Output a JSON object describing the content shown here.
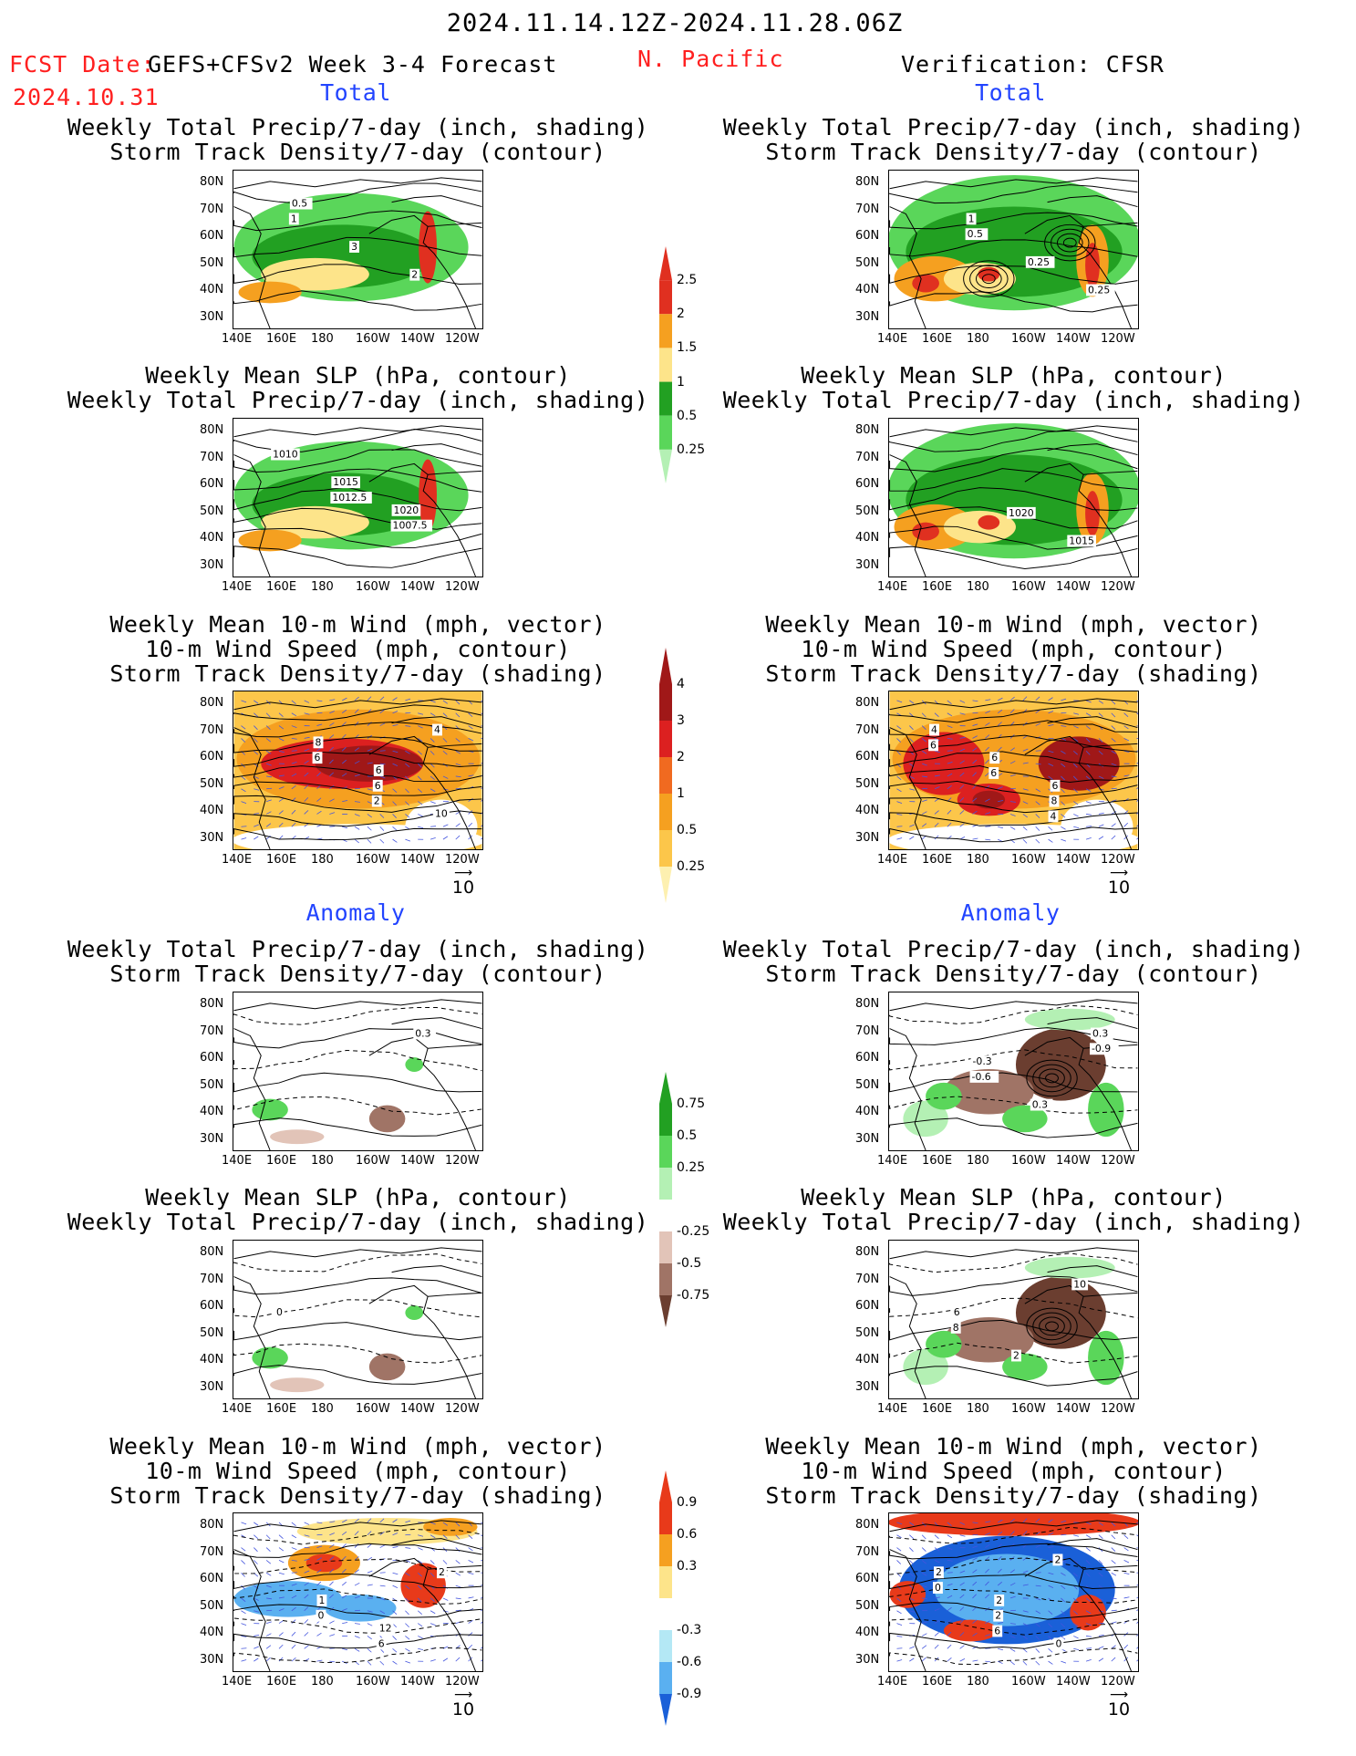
{
  "header": {
    "date_range": "2024.11.14.12Z-2024.11.28.06Z",
    "fcst_label": "FCST Date:",
    "model": "GEFS+CFSv2 Week 3-4 Forecast",
    "fcst_date": "2024.10.31",
    "region": "N. Pacific",
    "verification": "Verification: CFSR"
  },
  "sections": {
    "total": "Total",
    "anomaly": "Anomaly"
  },
  "titles": {
    "precip_storm": [
      "Weekly Total Precip/7-day (inch, shading)",
      "Storm Track Density/7-day (contour)"
    ],
    "slp_precip": [
      "Weekly Mean SLP (hPa, contour)",
      "Weekly Total Precip/7-day (inch, shading)"
    ],
    "wind_storm": [
      "Weekly Mean 10-m Wind (mph, vector)",
      "10-m Wind Speed (mph, contour)",
      "Storm Track Density/7-day (shading)"
    ]
  },
  "axes": {
    "lat": [
      "80N",
      "70N",
      "60N",
      "50N",
      "40N",
      "30N"
    ],
    "lon": [
      "140E",
      "160E",
      "180",
      "160W",
      "140W",
      "120W"
    ]
  },
  "vector_ref": "10",
  "colorbars": {
    "precip_total": {
      "labels": [
        "2.5",
        "2",
        "1.5",
        "1",
        "0.5",
        "0.25"
      ],
      "colors": [
        "#e03020",
        "#f5a020",
        "#fde48a",
        "#22a022",
        "#5ad65a",
        "#b4f0b4"
      ]
    },
    "storm_total": {
      "labels": [
        "4",
        "3",
        "2",
        "1",
        "0.5",
        "0.25"
      ],
      "colors": [
        "#a01818",
        "#dc2020",
        "#f06a20",
        "#f5a020",
        "#fcc64a",
        "#fdf0b0"
      ]
    },
    "precip_anom": {
      "labels": [
        "0.75",
        "0.5",
        "0.25",
        "-0.25",
        "-0.5",
        "-0.75"
      ],
      "colors": [
        "#22a022",
        "#5ad65a",
        "#b4f0b4",
        "#ffffff",
        "#e2c4b8",
        "#a07466",
        "#6b3e30"
      ]
    },
    "storm_anom": {
      "labels": [
        "0.9",
        "0.6",
        "0.3",
        "-0.3",
        "-0.6",
        "-0.9"
      ],
      "colors": [
        "#e83a1a",
        "#f5a020",
        "#fde48a",
        "#ffffff",
        "#b4e8f5",
        "#5ab0f0",
        "#1a60d8"
      ]
    }
  },
  "panel_labels": {
    "p1": [
      "1",
      "3",
      "2",
      "0.5"
    ],
    "p2": [
      "0.5",
      "0.25",
      "0.25",
      "1"
    ],
    "p3": [
      "1012.5",
      "1007.5",
      "1010",
      "1015",
      "1020"
    ],
    "p4": [
      "1020",
      "1015"
    ],
    "p5": [
      "2",
      "4",
      "6",
      "6",
      "10",
      "8",
      "6"
    ],
    "p6": [
      "4",
      "6",
      "6",
      "8",
      "4",
      "6",
      "6"
    ],
    "p7": [
      "0.3"
    ],
    "p8": [
      "-0.9",
      "-0.6",
      "0.3",
      "0.3",
      "-0.3"
    ],
    "p9": [
      "0"
    ],
    "p10": [
      "8",
      "2",
      "10",
      "6"
    ],
    "p11": [
      "0",
      "6",
      "2",
      "1",
      "12"
    ],
    "p12": [
      "6",
      "2",
      "0",
      "2",
      "0",
      "2",
      "2"
    ]
  }
}
